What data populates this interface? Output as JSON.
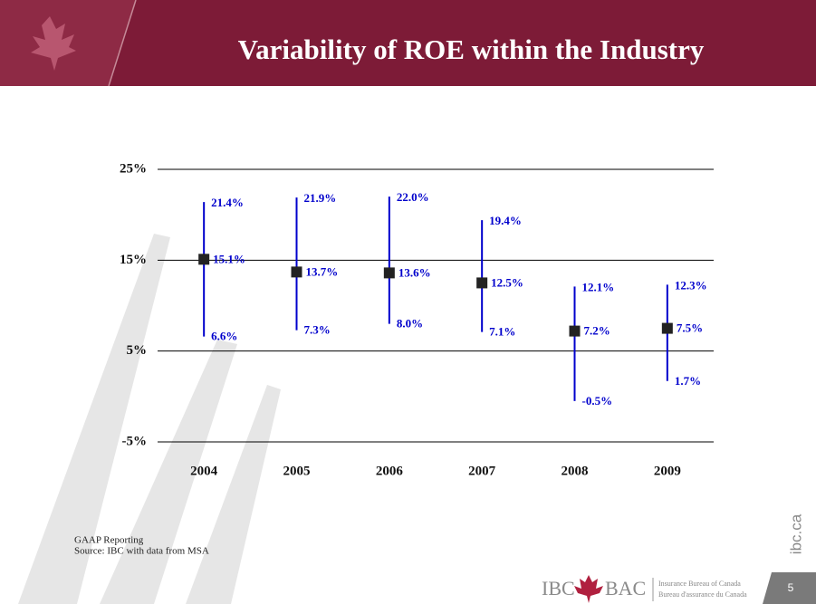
{
  "chart_data": {
    "type": "range",
    "title": "Variability of ROE within the Industry",
    "categories": [
      "2004",
      "2005",
      "2006",
      "2007",
      "2008",
      "2009"
    ],
    "high": {
      "color": "#0000cc",
      "values": [
        21.4,
        21.9,
        22.0,
        19.4,
        12.1,
        12.3
      ],
      "value_labels": [
        "21.4%",
        "21.9%",
        "22.0%",
        "19.4%",
        "12.1%",
        "12.3%"
      ]
    },
    "mean": {
      "color": "#222222",
      "values": [
        15.1,
        13.7,
        13.6,
        12.5,
        7.2,
        7.5
      ],
      "value_labels": [
        "15.1%",
        "13.7%",
        "13.6%",
        "12.5%",
        "7.2%",
        "7.5%"
      ]
    },
    "low": {
      "color": "#0000cc",
      "values": [
        6.6,
        7.3,
        8.0,
        7.1,
        -0.5,
        1.7
      ],
      "value_labels": [
        "6.6%",
        "7.3%",
        "8.0%",
        "7.1%",
        "-0.5%",
        "1.7%"
      ]
    },
    "ylim": [
      -5,
      25
    ],
    "yticks": [
      {
        "value": 25,
        "label": "25%"
      },
      {
        "value": 15,
        "label": "15%"
      },
      {
        "value": 5,
        "label": "5%"
      },
      {
        "value": -5,
        "label": "-5%"
      }
    ],
    "grid": true
  },
  "footnotes": [
    "GAAP Reporting",
    "Source: IBC with data from MSA"
  ],
  "logo": {
    "left": "IBC",
    "right": "BAC",
    "english": "Insurance Bureau of Canada",
    "french": "Bureau d'assurance du Canada"
  },
  "website": "ibc.ca",
  "page_number": "5"
}
